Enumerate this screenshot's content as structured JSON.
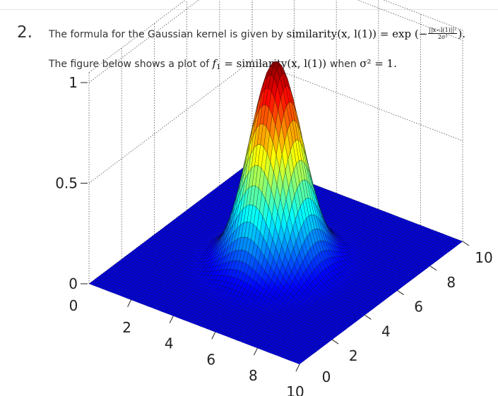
{
  "question": {
    "number": "2.",
    "line1": {
      "prefix": "The formula for the Gaussian kernel is given by",
      "formula_lhs": "similarity",
      "formula_args": "(x, l(1))",
      "formula_rhs": "= exp (−",
      "frac_num": "||x−l(1)||²",
      "frac_den": "2σ²",
      "suffix": ")."
    },
    "line2": {
      "prefix": "The figure below shows a plot of",
      "f_name": "f",
      "f_sub": "1",
      "equals": "= similarity",
      "args": "(x, l(1))",
      "when": "when",
      "condition": "σ² = 1."
    }
  },
  "chart_data": {
    "type": "surface",
    "title": "",
    "function": "exp(-((x-5)^2 + (y-5)^2) / (2*1))",
    "center": [
      5,
      5
    ],
    "sigma_squared": 1,
    "x_ticks": [
      "0",
      "2",
      "4",
      "6",
      "8",
      "10"
    ],
    "y_ticks": [
      "0",
      "2",
      "4",
      "6",
      "8",
      "10"
    ],
    "z_ticks": [
      "0",
      "0.5",
      "1"
    ],
    "xlim": [
      0,
      10
    ],
    "ylim": [
      0,
      10
    ],
    "zlim": [
      0,
      1
    ],
    "grid": true,
    "colormap": "jet",
    "colors": {
      "low": "#00008f",
      "mid": "#00ffff",
      "high": "#800000",
      "mesh": "#000000"
    }
  }
}
